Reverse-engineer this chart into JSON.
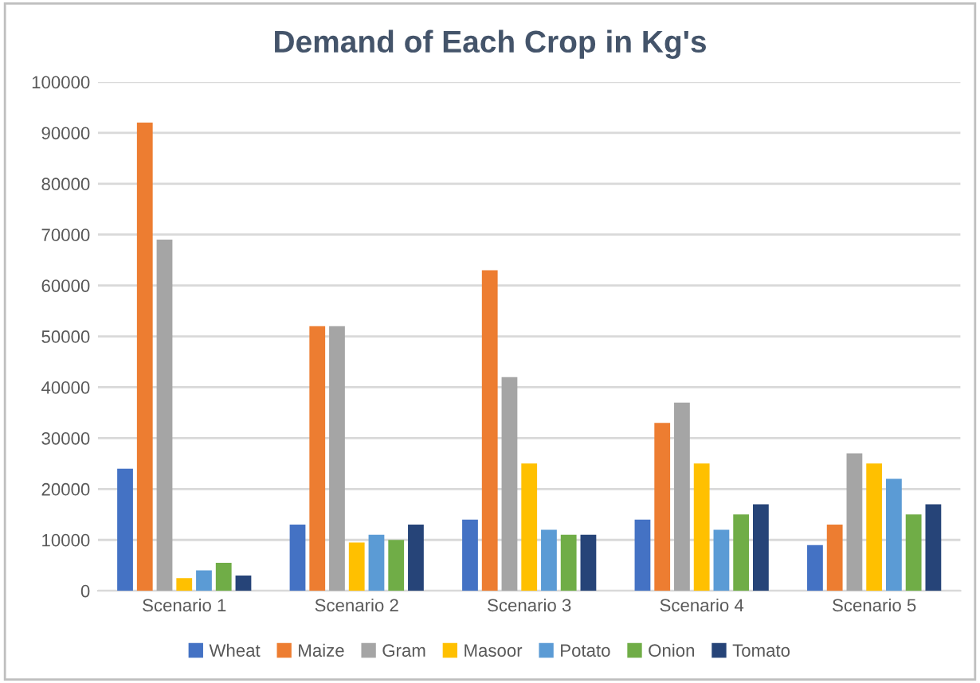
{
  "chart_data": {
    "type": "bar",
    "title": "Demand of Each Crop in Kg's",
    "categories": [
      "Scenario 1",
      "Scenario 2",
      "Scenario 3",
      "Scenario 4",
      "Scenario 5"
    ],
    "series": [
      {
        "name": "Wheat",
        "color": "#4472c4",
        "values": [
          24000,
          13000,
          14000,
          14000,
          9000
        ]
      },
      {
        "name": "Maize",
        "color": "#ed7d31",
        "values": [
          92000,
          52000,
          63000,
          33000,
          13000
        ]
      },
      {
        "name": "Gram",
        "color": "#a5a5a5",
        "values": [
          69000,
          52000,
          42000,
          37000,
          27000
        ]
      },
      {
        "name": "Masoor",
        "color": "#ffc000",
        "values": [
          2500,
          9500,
          25000,
          25000,
          25000
        ]
      },
      {
        "name": "Potato",
        "color": "#5b9bd5",
        "values": [
          4000,
          11000,
          12000,
          12000,
          22000
        ]
      },
      {
        "name": "Onion",
        "color": "#70ad47",
        "values": [
          5500,
          10000,
          11000,
          15000,
          15000
        ]
      },
      {
        "name": "Tomato",
        "color": "#264478",
        "values": [
          3000,
          13000,
          11000,
          17000,
          17000
        ]
      }
    ],
    "ylim": [
      0,
      100000
    ],
    "yticks": [
      0,
      10000,
      20000,
      30000,
      40000,
      50000,
      60000,
      70000,
      80000,
      90000,
      100000
    ],
    "grid": "y",
    "legend": "bottom"
  }
}
